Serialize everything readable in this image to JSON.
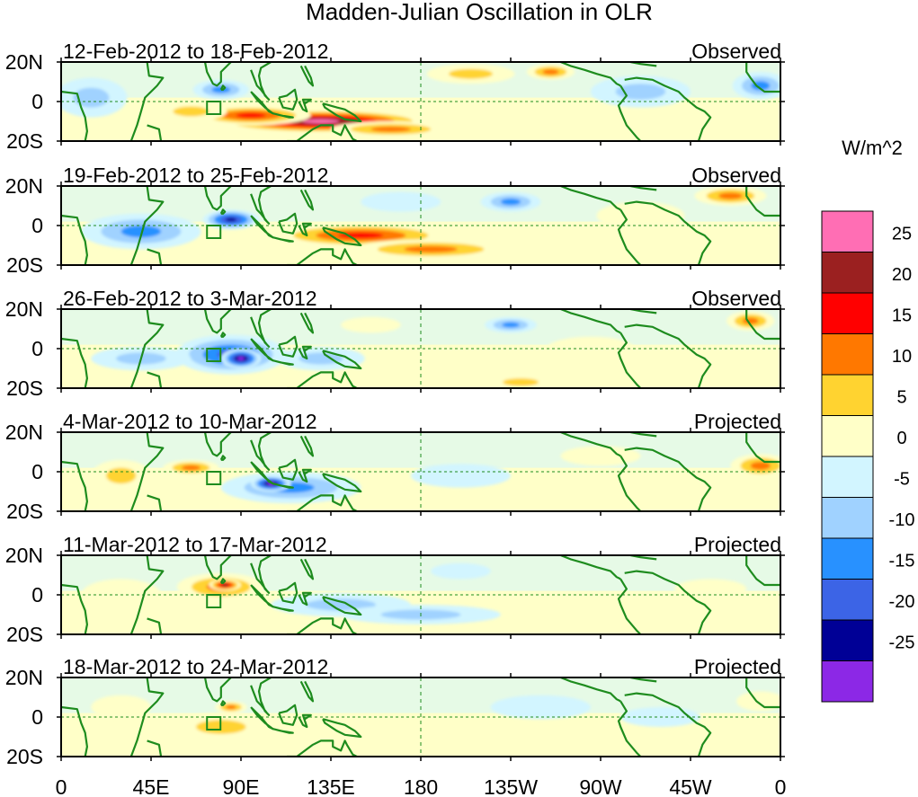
{
  "title": "Madden-Julian Oscillation in OLR",
  "panels": [
    {
      "date_range": "12-Feb-2012 to 18-Feb-2012",
      "status": "Observed"
    },
    {
      "date_range": "19-Feb-2012 to 25-Feb-2012",
      "status": "Observed"
    },
    {
      "date_range": "26-Feb-2012 to 3-Mar-2012",
      "status": "Observed"
    },
    {
      "date_range": "4-Mar-2012 to 10-Mar-2012",
      "status": "Projected"
    },
    {
      "date_range": "11-Mar-2012 to 17-Mar-2012",
      "status": "Projected"
    },
    {
      "date_range": "18-Mar-2012 to 24-Mar-2012",
      "status": "Projected"
    }
  ],
  "lat_labels": [
    "20N",
    "0",
    "20S"
  ],
  "lon_labels": [
    "0",
    "45E",
    "90E",
    "135E",
    "180",
    "135W",
    "90W",
    "45W",
    "0"
  ],
  "colorbar": {
    "unit": "W/m^2",
    "levels": [
      "25",
      "20",
      "15",
      "10",
      "5",
      "0",
      "-5",
      "-10",
      "-15",
      "-20",
      "-25"
    ],
    "colors": [
      "#ff6eb4",
      "#9b2020",
      "#ff0000",
      "#ff7800",
      "#ffd330",
      "#ffffc8",
      "#d2f5ff",
      "#a0d2ff",
      "#2891ff",
      "#3c64e6",
      "#000096",
      "#8c28e6"
    ]
  },
  "colors": {
    "coast": "#1e8c1e",
    "frame": "#000000"
  },
  "anomalies": [
    [
      {
        "lon": 130,
        "lat": -10,
        "a": 55,
        "b": 6,
        "v": 27
      },
      {
        "lon": 95,
        "lat": -7,
        "a": 30,
        "b": 5,
        "v": 18
      },
      {
        "lon": 65,
        "lat": -5,
        "a": 18,
        "b": 5,
        "v": 9
      },
      {
        "lon": 165,
        "lat": -14,
        "a": 30,
        "b": 4,
        "v": 12
      },
      {
        "lon": 15,
        "lat": 2,
        "a": 18,
        "b": 10,
        "v": -9
      },
      {
        "lon": 80,
        "lat": 6,
        "a": 14,
        "b": 5,
        "v": -14
      },
      {
        "lon": 205,
        "lat": 14,
        "a": 22,
        "b": 5,
        "v": 8
      },
      {
        "lon": 245,
        "lat": 15,
        "a": 12,
        "b": 4,
        "v": 12
      },
      {
        "lon": 290,
        "lat": 5,
        "a": 25,
        "b": 8,
        "v": -7
      },
      {
        "lon": 350,
        "lat": 8,
        "a": 14,
        "b": 7,
        "v": -12
      }
    ],
    [
      {
        "lon": 150,
        "lat": -5,
        "a": 45,
        "b": 6,
        "v": 20
      },
      {
        "lon": 185,
        "lat": -12,
        "a": 40,
        "b": 5,
        "v": 12
      },
      {
        "lon": 40,
        "lat": -3,
        "a": 30,
        "b": 9,
        "v": -11
      },
      {
        "lon": 85,
        "lat": 3,
        "a": 14,
        "b": 5,
        "v": -22
      },
      {
        "lon": 225,
        "lat": 12,
        "a": 15,
        "b": 5,
        "v": -12
      },
      {
        "lon": 170,
        "lat": 12,
        "a": 20,
        "b": 5,
        "v": -5
      },
      {
        "lon": 335,
        "lat": 15,
        "a": 18,
        "b": 5,
        "v": 14
      },
      {
        "lon": 290,
        "lat": 5,
        "a": 22,
        "b": 7,
        "v": 4
      }
    ],
    [
      {
        "lon": 85,
        "lat": -3,
        "a": 28,
        "b": 10,
        "v": -18
      },
      {
        "lon": 90,
        "lat": -5,
        "a": 10,
        "b": 5,
        "v": -26
      },
      {
        "lon": 40,
        "lat": -5,
        "a": 25,
        "b": 6,
        "v": -7
      },
      {
        "lon": 130,
        "lat": -5,
        "a": 22,
        "b": 6,
        "v": -8
      },
      {
        "lon": 225,
        "lat": 12,
        "a": 13,
        "b": 4,
        "v": -12
      },
      {
        "lon": 265,
        "lat": 0,
        "a": 22,
        "b": 6,
        "v": 5
      },
      {
        "lon": 230,
        "lat": -17,
        "a": 18,
        "b": 4,
        "v": 10
      },
      {
        "lon": 345,
        "lat": 14,
        "a": 12,
        "b": 5,
        "v": 12
      },
      {
        "lon": 155,
        "lat": 12,
        "a": 15,
        "b": 4,
        "v": 5
      }
    ],
    [
      {
        "lon": 115,
        "lat": -8,
        "a": 35,
        "b": 8,
        "v": -15
      },
      {
        "lon": 105,
        "lat": -6,
        "a": 10,
        "b": 4,
        "v": -26
      },
      {
        "lon": 65,
        "lat": 2,
        "a": 14,
        "b": 4,
        "v": 12
      },
      {
        "lon": 30,
        "lat": -2,
        "a": 15,
        "b": 8,
        "v": 6
      },
      {
        "lon": 350,
        "lat": 3,
        "a": 15,
        "b": 6,
        "v": 12
      },
      {
        "lon": 200,
        "lat": -2,
        "a": 25,
        "b": 6,
        "v": -5
      },
      {
        "lon": 270,
        "lat": 8,
        "a": 20,
        "b": 5,
        "v": 4
      }
    ],
    [
      {
        "lon": 80,
        "lat": 4,
        "a": 22,
        "b": 7,
        "v": 14
      },
      {
        "lon": 82,
        "lat": 5,
        "a": 8,
        "b": 3,
        "v": 22
      },
      {
        "lon": 140,
        "lat": -5,
        "a": 35,
        "b": 6,
        "v": -10
      },
      {
        "lon": 180,
        "lat": -10,
        "a": 40,
        "b": 5,
        "v": -6
      },
      {
        "lon": 30,
        "lat": 0,
        "a": 20,
        "b": 8,
        "v": 5
      },
      {
        "lon": 325,
        "lat": 3,
        "a": 18,
        "b": 5,
        "v": 5
      },
      {
        "lon": 200,
        "lat": 12,
        "a": 15,
        "b": 4,
        "v": -5
      }
    ],
    [
      {
        "lon": 80,
        "lat": -5,
        "a": 25,
        "b": 7,
        "v": 7
      },
      {
        "lon": 85,
        "lat": 5,
        "a": 8,
        "b": 3,
        "v": 12
      },
      {
        "lon": 165,
        "lat": -12,
        "a": 35,
        "b": 5,
        "v": 5
      },
      {
        "lon": 30,
        "lat": 5,
        "a": 15,
        "b": 6,
        "v": 4
      },
      {
        "lon": 240,
        "lat": 5,
        "a": 25,
        "b": 6,
        "v": -4
      },
      {
        "lon": 300,
        "lat": 0,
        "a": 20,
        "b": 5,
        "v": -5
      },
      {
        "lon": 350,
        "lat": 8,
        "a": 12,
        "b": 5,
        "v": 4
      }
    ]
  ]
}
